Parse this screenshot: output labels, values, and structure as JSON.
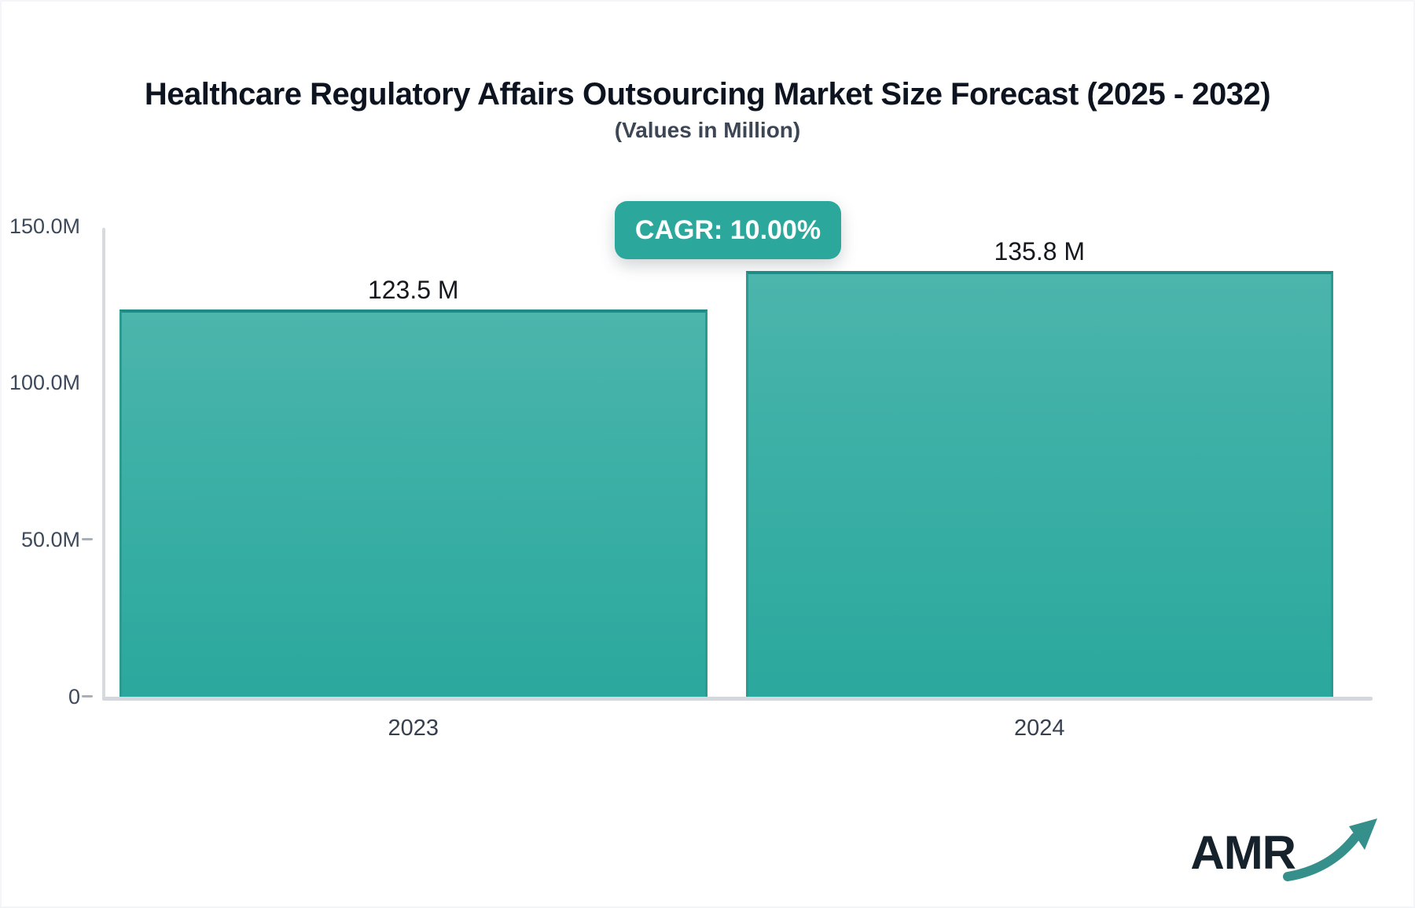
{
  "header": {
    "title": "Healthcare Regulatory Affairs Outsourcing Market Size Forecast (2025 - 2032)",
    "subtitle": "(Values in Million)"
  },
  "badge": {
    "label": "CAGR: 10.00%",
    "background_color": "#2BA79C",
    "text_color": "#FFFFFF"
  },
  "chart_data": {
    "type": "bar",
    "title": "Healthcare Regulatory Affairs Outsourcing Market Size Forecast (2025 - 2032)",
    "subtitle": "(Values in Million)",
    "unit": "Million",
    "cagr": "10.00%",
    "categories": [
      "2023",
      "2024"
    ],
    "values": [
      123.5,
      135.8
    ],
    "value_labels": [
      "123.5 M",
      "135.8 M"
    ],
    "ylim": [
      0,
      150
    ],
    "yticks": [
      {
        "label": "150.0M",
        "value": 150,
        "dash": false
      },
      {
        "label": "100.0M",
        "value": 100,
        "dash": false
      },
      {
        "label": "50.0M",
        "value": 50,
        "dash": true
      },
      {
        "label": "0",
        "value": 0,
        "dash": true
      }
    ],
    "grid": false,
    "legend": "none",
    "bar_color_top": "#4CB5AC",
    "bar_color_bottom": "#2BA89D",
    "bar_border_color": "#1E8C84",
    "axis_color": "#D5D8DE"
  },
  "branding": {
    "logo_text": "AMR",
    "logo_arrow_icon": "trend-up-arrow-icon",
    "logo_text_color": "#15222C",
    "logo_arrow_color": "#35908B"
  }
}
